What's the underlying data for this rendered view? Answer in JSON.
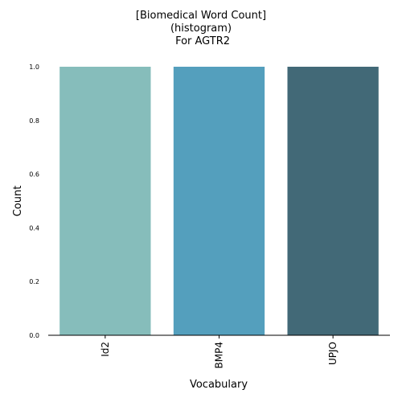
{
  "chart_data": {
    "type": "bar",
    "title_lines": [
      "[Biomedical Word Count]",
      "(histogram)",
      " For AGTR2"
    ],
    "xlabel": "Vocabulary",
    "ylabel": "Count",
    "categories": [
      "Id2",
      "BMP4",
      "UPJO"
    ],
    "values": [
      1,
      1,
      1
    ],
    "ylim": [
      0,
      1
    ],
    "yticks": [
      "0.0",
      "0.2",
      "0.4",
      "0.6",
      "0.8",
      "1.0"
    ],
    "colors": [
      "#86bdbb",
      "#549fbd",
      "#426977"
    ],
    "grid": false,
    "legend": "none"
  }
}
